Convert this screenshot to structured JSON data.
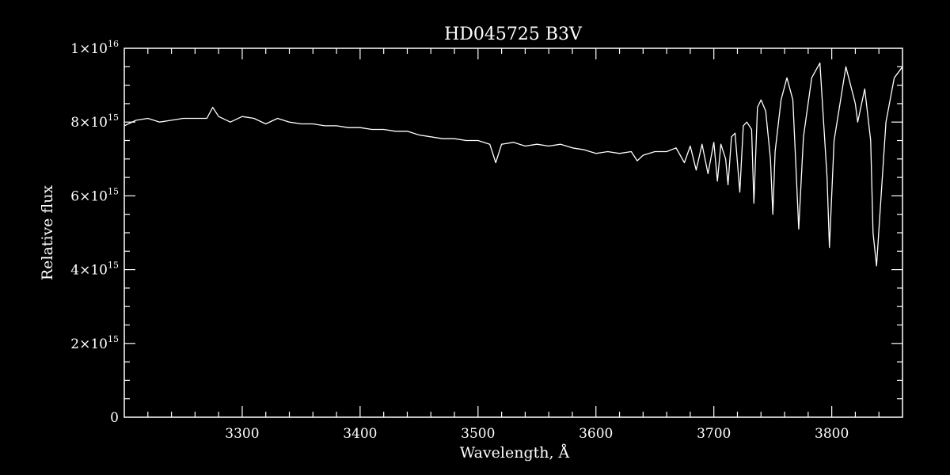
{
  "chart_data": {
    "type": "line",
    "title": "HD045725   B3V",
    "xlabel": "Wavelength, Å",
    "ylabel": "Relative flux",
    "xlim": [
      3200,
      3860
    ],
    "ylim": [
      0,
      1e+16
    ],
    "x_ticks": [
      {
        "value": 3300,
        "label": "3300"
      },
      {
        "value": 3400,
        "label": "3400"
      },
      {
        "value": 3500,
        "label": "3500"
      },
      {
        "value": 3600,
        "label": "3600"
      },
      {
        "value": 3700,
        "label": "3700"
      },
      {
        "value": 3800,
        "label": "3800"
      }
    ],
    "y_ticks": [
      {
        "value": 0,
        "base": "0",
        "exp": ""
      },
      {
        "value": 2000000000000000.0,
        "base": "2×10",
        "exp": "15"
      },
      {
        "value": 4000000000000000.0,
        "base": "4×10",
        "exp": "15"
      },
      {
        "value": 6000000000000000.0,
        "base": "6×10",
        "exp": "15"
      },
      {
        "value": 8000000000000000.0,
        "base": "8×10",
        "exp": "15"
      },
      {
        "value": 1e+16,
        "base": "1×10",
        "exp": "16"
      }
    ],
    "grid": false,
    "colors": {
      "background": "#000000",
      "line": "#ffffff",
      "axes": "#ffffff"
    },
    "series": [
      {
        "x": [
          3200,
          3210,
          3220,
          3230,
          3240,
          3250,
          3260,
          3270,
          3275,
          3280,
          3290,
          3300,
          3310,
          3320,
          3330,
          3340,
          3350,
          3360,
          3370,
          3380,
          3390,
          3400,
          3410,
          3420,
          3430,
          3440,
          3450,
          3460,
          3470,
          3480,
          3490,
          3500,
          3510,
          3515,
          3520,
          3530,
          3540,
          3550,
          3560,
          3570,
          3580,
          3590,
          3600,
          3610,
          3620,
          3630,
          3635,
          3640,
          3650,
          3660,
          3668,
          3675,
          3680,
          3685,
          3690,
          3695,
          3700,
          3703,
          3706,
          3710,
          3712,
          3715,
          3718,
          3722,
          3725,
          3728,
          3732,
          3734,
          3737,
          3740,
          3744,
          3748,
          3750,
          3752,
          3757,
          3762,
          3767,
          3770,
          3772,
          3776,
          3783,
          3790,
          3796,
          3798,
          3802,
          3812,
          3820,
          3822,
          3828,
          3833,
          3835,
          3838,
          3846,
          3853,
          3860
        ],
        "y": [
          7900000000000000.0,
          8050000000000000.0,
          8100000000000000.0,
          8000000000000000.0,
          8050000000000000.0,
          8100000000000000.0,
          8100000000000000.0,
          8100000000000000.0,
          8400000000000000.0,
          8150000000000000.0,
          8000000000000000.0,
          8150000000000000.0,
          8100000000000000.0,
          7950000000000000.0,
          8100000000000000.0,
          8000000000000000.0,
          7950000000000000.0,
          7950000000000000.0,
          7900000000000000.0,
          7900000000000000.0,
          7850000000000000.0,
          7850000000000000.0,
          7800000000000000.0,
          7800000000000000.0,
          7750000000000000.0,
          7750000000000000.0,
          7650000000000000.0,
          7600000000000000.0,
          7550000000000000.0,
          7550000000000000.0,
          7500000000000000.0,
          7500000000000000.0,
          7400000000000000.0,
          6900000000000000.0,
          7400000000000000.0,
          7450000000000000.0,
          7350000000000000.0,
          7400000000000000.0,
          7350000000000000.0,
          7400000000000000.0,
          7300000000000000.0,
          7250000000000000.0,
          7150000000000000.0,
          7200000000000000.0,
          7150000000000000.0,
          7200000000000000.0,
          6950000000000000.0,
          7100000000000000.0,
          7200000000000000.0,
          7200000000000000.0,
          7300000000000000.0,
          6900000000000000.0,
          7350000000000000.0,
          6700000000000000.0,
          7400000000000000.0,
          6600000000000000.0,
          7450000000000000.0,
          6400000000000000.0,
          7400000000000000.0,
          7000000000000000.0,
          6300000000000000.0,
          7600000000000000.0,
          7700000000000000.0,
          6100000000000000.0,
          7900000000000000.0,
          8000000000000000.0,
          7800000000000000.0,
          5800000000000000.0,
          8400000000000000.0,
          8600000000000000.0,
          8300000000000000.0,
          7000000000000000.0,
          5500000000000000.0,
          7200000000000000.0,
          8600000000000000.0,
          9200000000000000.0,
          8600000000000000.0,
          6500000000000000.0,
          5100000000000000.0,
          7600000000000000.0,
          9200000000000000.0,
          9600000000000000.0,
          6500000000000000.0,
          4600000000000000.0,
          7500000000000000.0,
          9500000000000000.0,
          8500000000000000.0,
          8000000000000000.0,
          8900000000000000.0,
          7500000000000000.0,
          5000000000000000.0,
          4100000000000000.0,
          8000000000000000.0,
          9200000000000000.0,
          9500000000000000.0
        ]
      }
    ]
  }
}
